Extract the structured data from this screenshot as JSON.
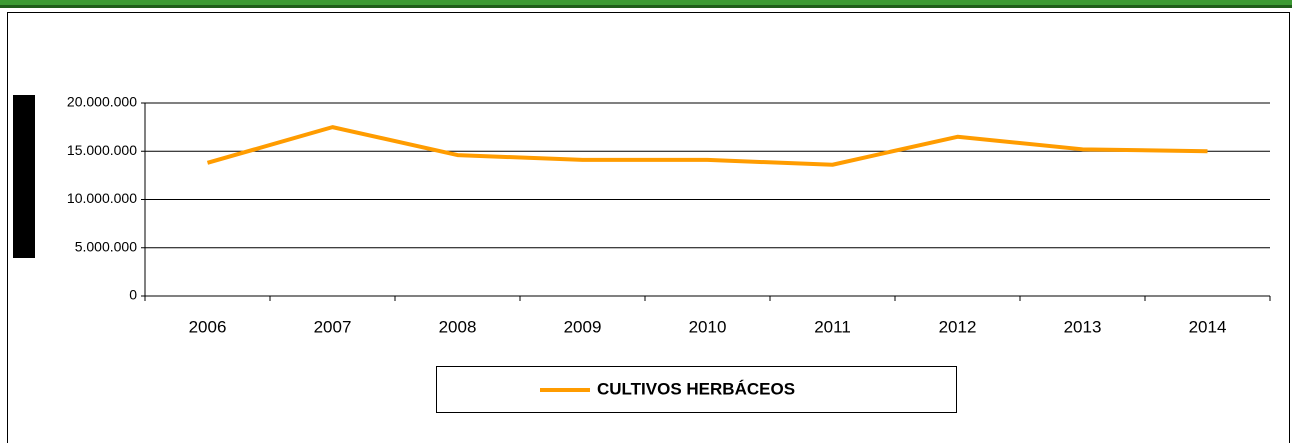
{
  "chart_data": {
    "type": "line",
    "categories": [
      "2006",
      "2007",
      "2008",
      "2009",
      "2010",
      "2011",
      "2012",
      "2013",
      "2014"
    ],
    "series": [
      {
        "name": "CULTIVOS HERBÁCEOS",
        "color": "#ff9c00",
        "values": [
          13800000,
          17500000,
          14600000,
          14100000,
          14100000,
          13600000,
          16500000,
          15200000,
          15000000
        ]
      }
    ],
    "ylim": [
      0,
      20000000
    ],
    "yticks": [
      0,
      {
        "value": 5000000,
        "label": "5.000.000"
      },
      {
        "value": 10000000,
        "label": "10.000.000"
      },
      {
        "value": 15000000,
        "label": "15.000.000"
      },
      {
        "value": 20000000,
        "label": "20.000.000"
      }
    ],
    "grid": true,
    "legend": "bottom"
  }
}
